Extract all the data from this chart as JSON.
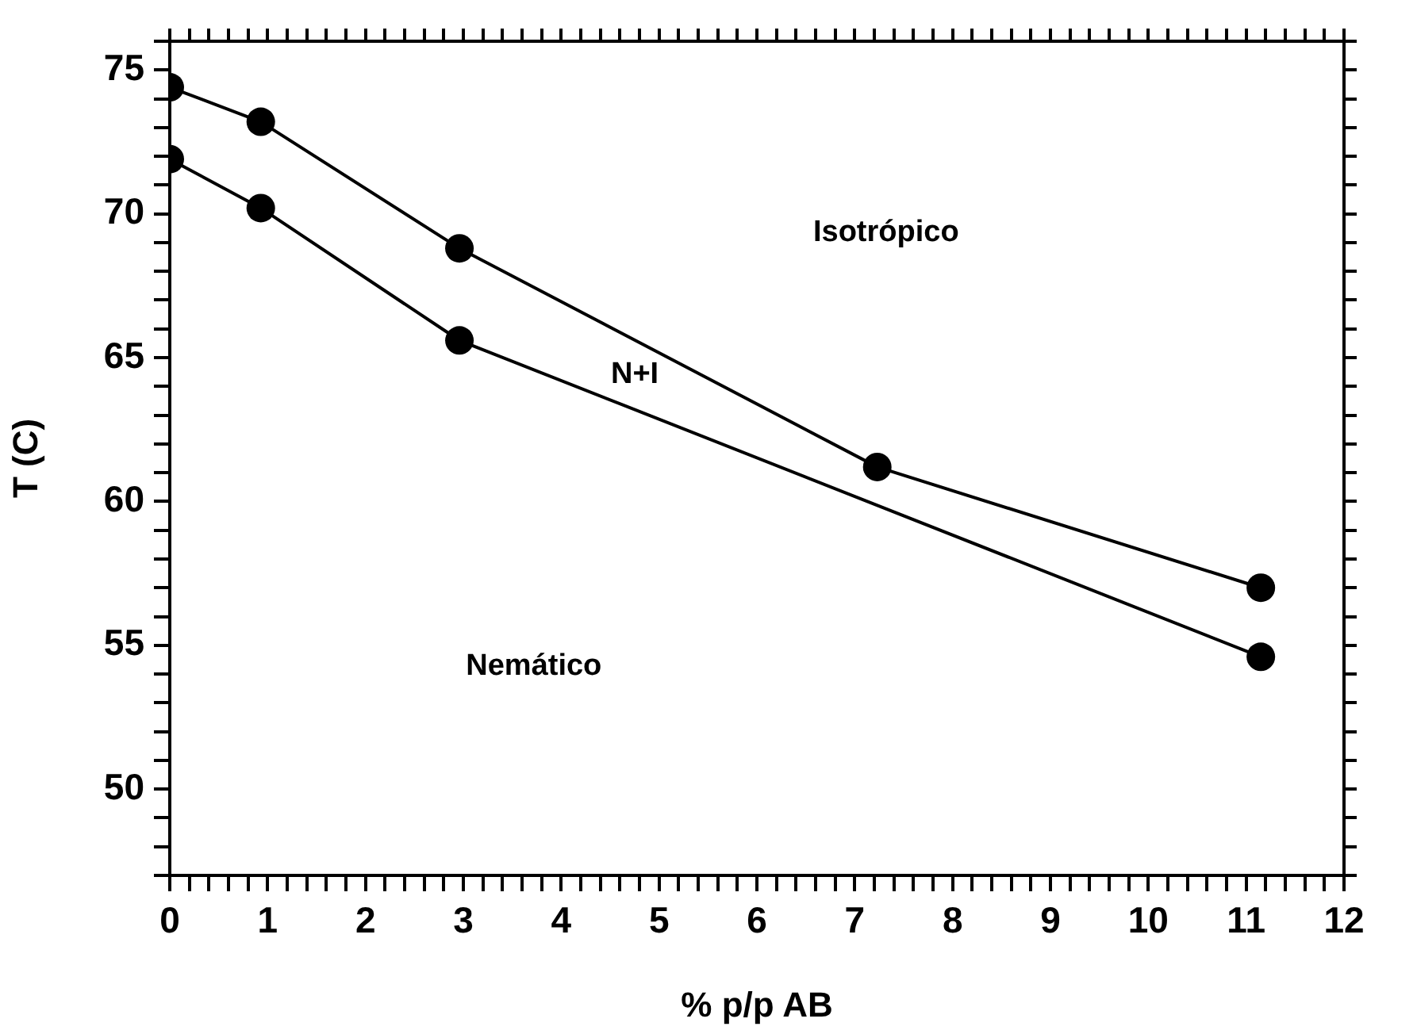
{
  "chart_data": {
    "type": "line",
    "xlabel": "% p/p AB",
    "ylabel": "T (C)",
    "marker": "circle",
    "line_style": "solid",
    "legend": false,
    "grid": false,
    "series": [
      {
        "color": "#000000",
        "x": [
          0,
          0.93,
          2.96,
          7.23,
          11.15
        ],
        "values": [
          74.4,
          73.2,
          68.8,
          61.2,
          57.0
        ]
      },
      {
        "color": "#000000",
        "x": [
          0,
          0.93,
          2.96,
          11.15
        ],
        "values": [
          71.9,
          70.2,
          65.6,
          54.6
        ]
      }
    ],
    "xlim": [
      0,
      12
    ],
    "ylim": [
      47,
      76
    ],
    "xticks": [
      0,
      {
        "value": 0.2,
        "label": null
      },
      {
        "value": 0.4,
        "label": null
      },
      {
        "value": 0.6,
        "label": null
      },
      {
        "value": 0.8,
        "label": null
      },
      1,
      {
        "value": 1.2,
        "label": null
      },
      {
        "value": 1.4,
        "label": null
      },
      {
        "value": 1.6,
        "label": null
      },
      {
        "value": 1.8,
        "label": null
      },
      2,
      {
        "value": 2.2,
        "label": null
      },
      {
        "value": 2.4,
        "label": null
      },
      {
        "value": 2.6,
        "label": null
      },
      {
        "value": 2.8,
        "label": null
      },
      3,
      {
        "value": 3.2,
        "label": null
      },
      {
        "value": 3.4,
        "label": null
      },
      {
        "value": 3.6,
        "label": null
      },
      {
        "value": 3.8,
        "label": null
      },
      4,
      {
        "value": 4.2,
        "label": null
      },
      {
        "value": 4.4,
        "label": null
      },
      {
        "value": 4.6,
        "label": null
      },
      {
        "value": 4.8,
        "label": null
      },
      5,
      {
        "value": 5.2,
        "label": null
      },
      {
        "value": 5.4,
        "label": null
      },
      {
        "value": 5.6,
        "label": null
      },
      {
        "value": 5.8,
        "label": null
      },
      6,
      {
        "value": 6.2,
        "label": null
      },
      {
        "value": 6.4,
        "label": null
      },
      {
        "value": 6.6,
        "label": null
      },
      {
        "value": 6.8,
        "label": null
      },
      7,
      {
        "value": 7.2,
        "label": null
      },
      {
        "value": 7.4,
        "label": null
      },
      {
        "value": 7.6,
        "label": null
      },
      {
        "value": 7.8,
        "label": null
      },
      8,
      {
        "value": 8.2,
        "label": null
      },
      {
        "value": 8.4,
        "label": null
      },
      {
        "value": 8.6,
        "label": null
      },
      {
        "value": 8.8,
        "label": null
      },
      9,
      {
        "value": 9.2,
        "label": null
      },
      {
        "value": 9.4,
        "label": null
      },
      {
        "value": 9.6,
        "label": null
      },
      {
        "value": 9.8,
        "label": null
      },
      10,
      {
        "value": 10.2,
        "label": null
      },
      {
        "value": 10.4,
        "label": null
      },
      {
        "value": 10.6,
        "label": null
      },
      {
        "value": 10.8,
        "label": null
      },
      11,
      {
        "value": 11.2,
        "label": null
      },
      {
        "value": 11.4,
        "label": null
      },
      {
        "value": 11.6,
        "label": null
      },
      {
        "value": 11.8,
        "label": null
      },
      12
    ],
    "yticks": [
      {
        "value": 47,
        "label": null
      },
      {
        "value": 48,
        "label": null
      },
      {
        "value": 49,
        "label": null
      },
      50,
      {
        "value": 51,
        "label": null
      },
      {
        "value": 52,
        "label": null
      },
      {
        "value": 53,
        "label": null
      },
      {
        "value": 54,
        "label": null
      },
      55,
      {
        "value": 56,
        "label": null
      },
      {
        "value": 57,
        "label": null
      },
      {
        "value": 58,
        "label": null
      },
      {
        "value": 59,
        "label": null
      },
      60,
      {
        "value": 61,
        "label": null
      },
      {
        "value": 62,
        "label": null
      },
      {
        "value": 63,
        "label": null
      },
      {
        "value": 64,
        "label": null
      },
      65,
      {
        "value": 66,
        "label": null
      },
      {
        "value": 67,
        "label": null
      },
      {
        "value": 68,
        "label": null
      },
      {
        "value": 69,
        "label": null
      },
      70,
      {
        "value": 71,
        "label": null
      },
      {
        "value": 72,
        "label": null
      },
      {
        "value": 73,
        "label": null
      },
      {
        "value": 74,
        "label": null
      },
      75,
      {
        "value": 76,
        "label": null
      }
    ],
    "annotations": [
      "Isotrópico",
      "N+I",
      "Nemático"
    ]
  }
}
